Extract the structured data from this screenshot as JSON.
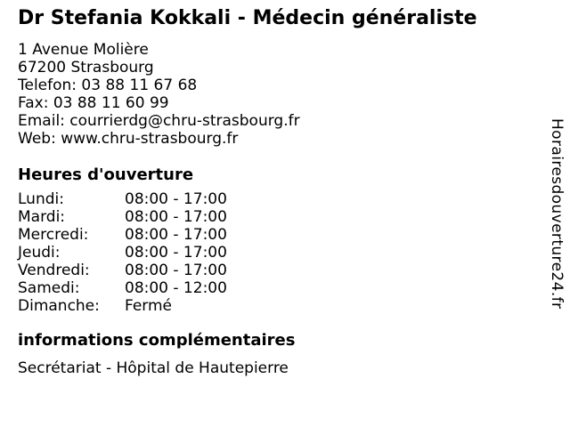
{
  "page": {
    "title": "Dr Stefania Kokkali - Médecin généraliste"
  },
  "contact": {
    "lines": [
      "1 Avenue Molière",
      "67200 Strasbourg",
      "Telefon: 03 88 11 67 68",
      "Fax: 03 88 11 60 99",
      "Email: courrierdg@chru-strasbourg.fr",
      "Web: www.chru-strasbourg.fr"
    ]
  },
  "opening_hours": {
    "heading": "Heures d'ouverture",
    "rows": [
      {
        "day": "Lundi:",
        "hours": "08:00 - 17:00"
      },
      {
        "day": "Mardi:",
        "hours": "08:00 - 17:00"
      },
      {
        "day": "Mercredi:",
        "hours": "08:00 - 17:00"
      },
      {
        "day": "Jeudi:",
        "hours": "08:00 - 17:00"
      },
      {
        "day": "Vendredi:",
        "hours": "08:00 - 17:00"
      },
      {
        "day": "Samedi:",
        "hours": "08:00 - 12:00"
      },
      {
        "day": "Dimanche:",
        "hours": "Fermé"
      }
    ]
  },
  "additional_info": {
    "heading": "informations complémentaires",
    "text": "Secrétariat - Hôpital de Hautepierre"
  },
  "watermark": {
    "text": "Horairesdouverture24.fr"
  },
  "colors": {
    "text": "#000000",
    "background": "#ffffff"
  }
}
